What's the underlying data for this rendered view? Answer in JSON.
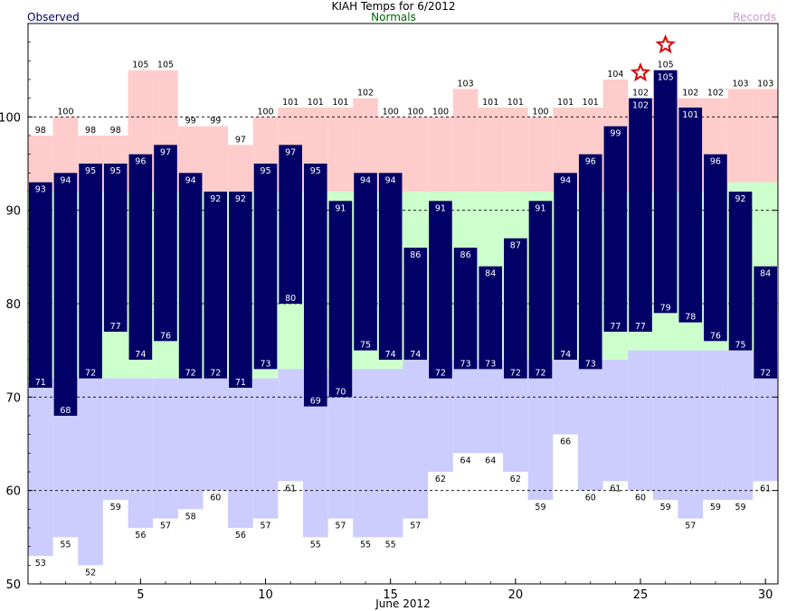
{
  "chart_data": {
    "type": "bar",
    "title": "KIAH Temps for 6/2012",
    "legend": {
      "observed": "Observed",
      "normals": "Normals",
      "records": "Records"
    },
    "xlabel": "June 2012",
    "xlim": [
      0.5,
      30.5
    ],
    "ylim": [
      50,
      110
    ],
    "x_ticks": [
      5,
      10,
      15,
      20,
      25,
      30
    ],
    "y_ticks": [
      50,
      60,
      70,
      80,
      90,
      100
    ],
    "dashed_gridlines": [
      60,
      70,
      80,
      90,
      100
    ],
    "days": [
      1,
      2,
      3,
      4,
      5,
      6,
      7,
      8,
      9,
      10,
      11,
      12,
      13,
      14,
      15,
      16,
      17,
      18,
      19,
      20,
      21,
      22,
      23,
      24,
      25,
      26,
      27,
      28,
      29,
      30
    ],
    "series": [
      {
        "name": "Observed",
        "role": "observed_high",
        "values": [
          93,
          94,
          95,
          95,
          96,
          97,
          94,
          92,
          92,
          95,
          97,
          95,
          91,
          94,
          94,
          86,
          91,
          86,
          84,
          87,
          91,
          94,
          96,
          99,
          102,
          105,
          101,
          96,
          92,
          84
        ]
      },
      {
        "name": "Observed",
        "role": "observed_low",
        "values": [
          71,
          68,
          72,
          77,
          74,
          76,
          72,
          72,
          71,
          73,
          80,
          69,
          70,
          75,
          74,
          74,
          72,
          73,
          73,
          72,
          72,
          74,
          73,
          77,
          77,
          79,
          78,
          76,
          75,
          72
        ]
      },
      {
        "name": "Normals",
        "role": "normal_high",
        "values": [
          92,
          92,
          92,
          92,
          92,
          92,
          92,
          92,
          92,
          92,
          92,
          92,
          92,
          92,
          92,
          92,
          92,
          92,
          92,
          92,
          92,
          92,
          92,
          92,
          92,
          92,
          92,
          92,
          93,
          93
        ]
      },
      {
        "name": "Normals",
        "role": "normal_low",
        "values": [
          72,
          72,
          72,
          72,
          72,
          72,
          72,
          72,
          72,
          72,
          73,
          73,
          73,
          73,
          73,
          74,
          74,
          74,
          74,
          74,
          74,
          74,
          74,
          74,
          75,
          75,
          75,
          75,
          75,
          75
        ]
      },
      {
        "name": "Records",
        "role": "record_high",
        "values": [
          98,
          100,
          98,
          98,
          105,
          105,
          99,
          99,
          97,
          100,
          101,
          101,
          101,
          102,
          100,
          100,
          100,
          103,
          101,
          101,
          100,
          101,
          101,
          104,
          102,
          105,
          102,
          102,
          103,
          103
        ]
      },
      {
        "name": "Records",
        "role": "record_low",
        "values": [
          53,
          55,
          52,
          59,
          56,
          57,
          58,
          60,
          56,
          57,
          61,
          55,
          57,
          55,
          55,
          57,
          62,
          64,
          64,
          62,
          59,
          66,
          60,
          61,
          60,
          59,
          57,
          59,
          59,
          61
        ]
      }
    ],
    "record_markers": [
      25,
      26
    ],
    "colors": {
      "observed": "#000066",
      "normals_band": "#ccffcc",
      "record_high_band": "#ffcccc",
      "record_low_band": "#ccccff",
      "title_text": "#000000",
      "observed_text": "#000066",
      "normals_text": "#006600",
      "records_text": "#cc99cc",
      "marker": "#dd0000"
    }
  }
}
